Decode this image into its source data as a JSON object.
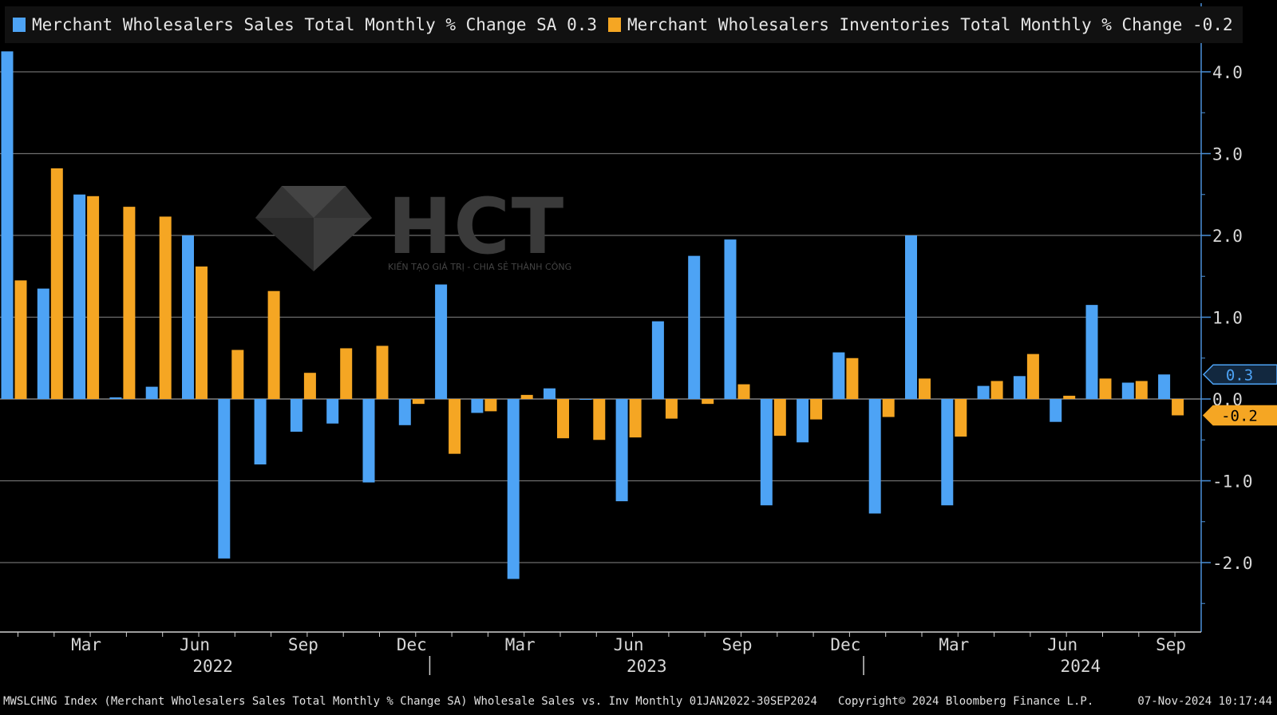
{
  "chart_data": {
    "type": "bar",
    "title": "Wholesale Sales vs. Inv",
    "colors": {
      "sales": "#4da3f5",
      "inventories": "#f5a623",
      "grid": "#6e6e6e",
      "axis": "#4a90d9"
    },
    "series": [
      {
        "key": "sales",
        "name": "Merchant Wholesalers Sales Total Monthly % Change SA 0.3",
        "values": [
          4.25,
          1.35,
          2.5,
          0.02,
          0.15,
          2.0,
          -1.95,
          -0.8,
          -0.4,
          -0.3,
          -1.02,
          -0.32,
          1.4,
          -0.17,
          -2.2,
          0.13,
          -0.01,
          -1.25,
          0.95,
          1.75,
          1.95,
          -1.3,
          -0.53,
          0.57,
          -1.4,
          2.0,
          -1.3,
          0.16,
          0.28,
          -0.28,
          1.15,
          0.2,
          0.3
        ]
      },
      {
        "key": "inventories",
        "name": "Merchant Wholesalers Inventories Total Monthly % Change -0.2",
        "values": [
          1.45,
          2.82,
          2.48,
          2.35,
          2.23,
          1.62,
          0.6,
          1.32,
          0.32,
          0.62,
          0.65,
          -0.06,
          -0.67,
          -0.15,
          0.05,
          -0.48,
          -0.5,
          -0.47,
          -0.24,
          -0.06,
          0.18,
          -0.45,
          -0.25,
          0.5,
          -0.22,
          0.25,
          -0.46,
          0.22,
          0.55,
          0.04,
          0.25,
          0.22,
          -0.2
        ]
      }
    ],
    "x_tick_labels": [
      {
        "index": 2,
        "label": "Mar"
      },
      {
        "index": 5,
        "label": "Jun"
      },
      {
        "index": 8,
        "label": "Sep"
      },
      {
        "index": 11,
        "label": "Dec"
      },
      {
        "index": 14,
        "label": "Mar"
      },
      {
        "index": 17,
        "label": "Jun"
      },
      {
        "index": 20,
        "label": "Sep"
      },
      {
        "index": 23,
        "label": "Dec"
      },
      {
        "index": 26,
        "label": "Mar"
      },
      {
        "index": 29,
        "label": "Jun"
      },
      {
        "index": 32,
        "label": "Sep"
      }
    ],
    "year_labels": [
      {
        "index": 5.5,
        "label": "2022"
      },
      {
        "index": 17.5,
        "label": "2023"
      },
      {
        "index": 29.5,
        "label": "2024"
      }
    ],
    "y_ticks": [
      -2.0,
      -1.0,
      0.0,
      1.0,
      2.0,
      3.0,
      4.0
    ],
    "y_tick_labels": [
      "-2.0",
      "-1.0",
      "0.0",
      "1.0",
      "2.0",
      "3.0",
      "4.0"
    ],
    "ylim": [
      -2.8,
      4.85
    ],
    "last_value_tags": [
      {
        "series": "sales",
        "value": 0.3,
        "label": "0.3"
      },
      {
        "series": "inventories",
        "value": -0.2,
        "label": "-0.2"
      }
    ],
    "grid": true,
    "legend_position": "top-left"
  },
  "footer": {
    "source": "MWSLCHNG Index (Merchant Wholesalers Sales Total Monthly % Change SA) Wholesale Sales vs. Inv  Monthly 01JAN2022-30SEP2024",
    "copyright": "Copyright© 2024 Bloomberg Finance L.P.",
    "timestamp": "07-Nov-2024 10:17:44"
  },
  "watermark": {
    "brand": "HCT",
    "tagline": "KIẾN TẠO GIÁ TRỊ - CHIA SẺ THÀNH CÔNG"
  }
}
